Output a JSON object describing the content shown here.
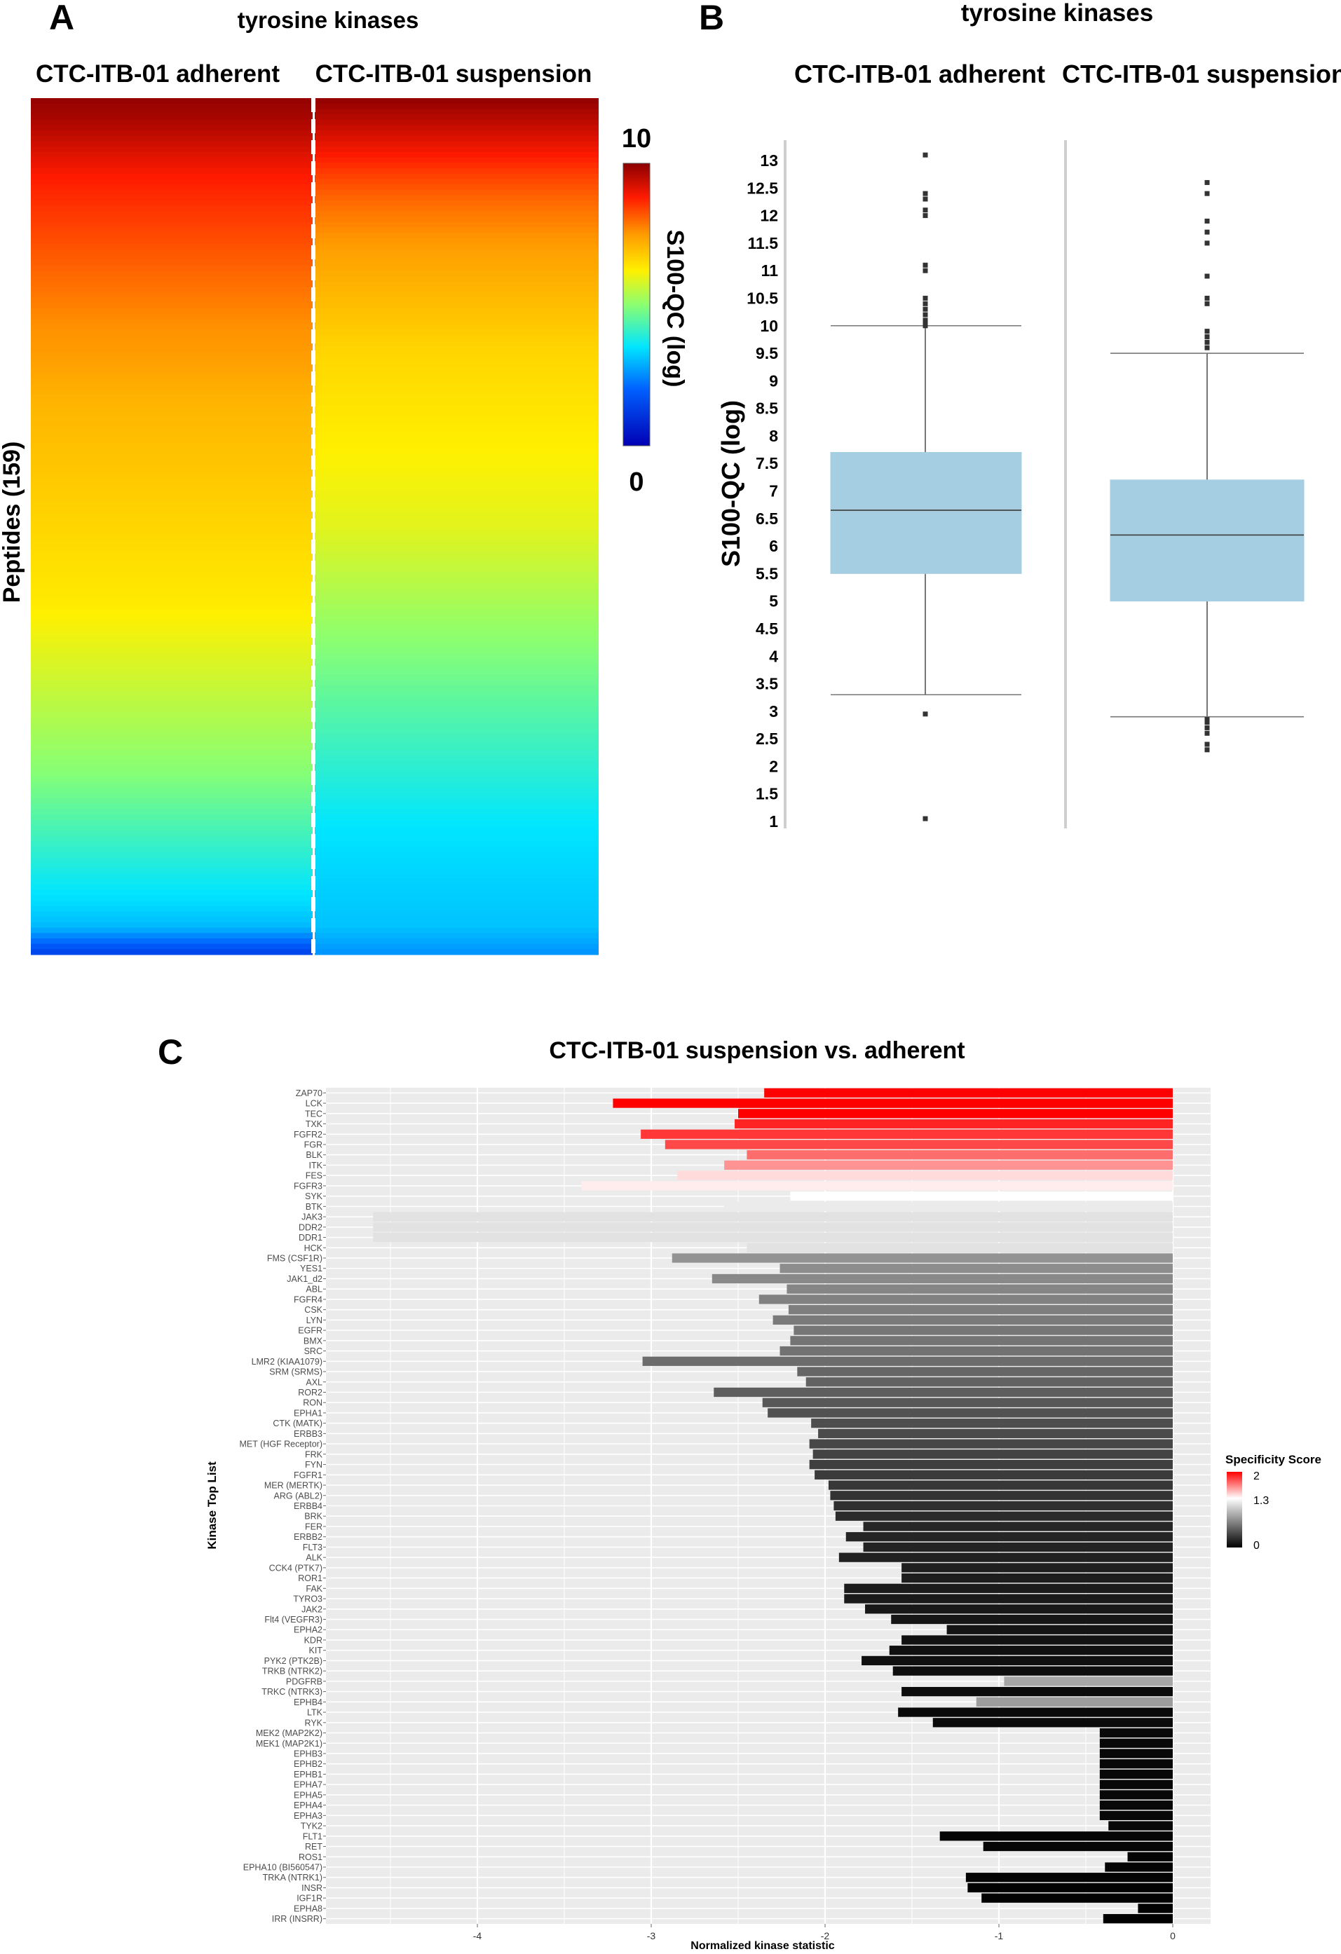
{
  "panelA": {
    "letter": "A",
    "title": "tyrosine kinases",
    "col1": "CTC-ITB-01 adherent",
    "col2": "CTC-ITB-01 suspension",
    "ylabel": "Peptides (159)",
    "colorbar_title": "S100-QC (log)",
    "colorbar_max": "10",
    "colorbar_min": "0"
  },
  "panelB": {
    "letter": "B",
    "title": "tyrosine kinases",
    "col1": "CTC-ITB-01 adherent",
    "col2": "CTC-ITB-01 suspension",
    "ylabel": "S100-QC (log)"
  },
  "panelC": {
    "letter": "C",
    "title": "CTC-ITB-01 suspension vs. adherent",
    "xlabel": "Normalized kinase statistic",
    "ylabel": "Kinase Top List",
    "legend_title": "Specificity Score",
    "legend_labels": [
      "2",
      "1.3",
      "0"
    ]
  },
  "chart_data": [
    {
      "type": "heatmap",
      "title": "tyrosine kinases",
      "columns": [
        "CTC-ITB-01 adherent",
        "CTC-ITB-01 suspension"
      ],
      "rows": "Peptides (159)",
      "colorbar": {
        "label": "S100-QC (log)",
        "min": 0,
        "max": 10
      },
      "value_profile": {
        "adherent": [
          9.9,
          9.6,
          9.2,
          8.8,
          8.6,
          8.4,
          8.2,
          8.0,
          7.8,
          7.6,
          7.5,
          7.3,
          7.1,
          7.0,
          6.9,
          6.8,
          6.7,
          6.6,
          6.5,
          6.4,
          6.3,
          6.1,
          5.9,
          5.7,
          5.5,
          5.3,
          5.1,
          4.9,
          4.6,
          4.3,
          4.0,
          3.7,
          3.4,
          3.0,
          1.5
        ],
        "suspension": [
          9.9,
          9.4,
          8.9,
          8.4,
          8.0,
          7.7,
          7.4,
          7.2,
          7.0,
          6.8,
          6.6,
          6.5,
          6.4,
          6.3,
          6.2,
          6.1,
          6.0,
          5.9,
          5.7,
          5.5,
          5.3,
          5.1,
          4.9,
          4.7,
          4.5,
          4.3,
          4.1,
          3.9,
          3.7,
          3.5,
          3.4,
          3.3,
          3.2,
          3.1,
          2.6
        ]
      }
    },
    {
      "type": "box",
      "title": "tyrosine kinases",
      "ylabel": "S100-QC (log)",
      "ylim": [
        1,
        13
      ],
      "yticks": [
        "13",
        "12.5",
        "12",
        "11.5",
        "11",
        "10.5",
        "10",
        "9.5",
        "9",
        "8.5",
        "8",
        "7.5",
        "7",
        "6.5",
        "6",
        "5.5",
        "5",
        "4.5",
        "4",
        "3.5",
        "3",
        "2.5",
        "2",
        "1.5",
        "1"
      ],
      "series": [
        {
          "name": "CTC-ITB-01 adherent",
          "whisker_low": 3.3,
          "q1": 5.5,
          "median": 6.65,
          "q3": 7.7,
          "whisker_high": 10.0,
          "outliers": [
            13.1,
            12.4,
            12.3,
            12.1,
            12.0,
            11.1,
            11.0,
            10.5,
            10.4,
            10.3,
            10.2,
            10.1,
            10.05,
            10.0,
            2.95,
            1.05
          ]
        },
        {
          "name": "CTC-ITB-01 suspension",
          "whisker_low": 2.9,
          "q1": 5.0,
          "median": 6.2,
          "q3": 7.2,
          "whisker_high": 9.5,
          "outliers": [
            12.6,
            12.4,
            11.9,
            11.7,
            11.5,
            10.9,
            10.5,
            10.4,
            9.9,
            9.8,
            9.7,
            9.6,
            2.85,
            2.8,
            2.7,
            2.6,
            2.4,
            2.3
          ]
        }
      ]
    },
    {
      "type": "bar",
      "title": "CTC-ITB-01 suspension vs. adherent",
      "xlabel": "Normalized kinase statistic",
      "ylabel": "Kinase Top List",
      "xlim": [
        -4.9,
        0.25
      ],
      "xticks": [
        -4,
        -3,
        -2,
        -1,
        0
      ],
      "legend": {
        "title": "Specificity Score",
        "min": 0,
        "mid": 1.3,
        "max": 2
      },
      "series": [
        {
          "name": "ZAP70",
          "values": [
            [
              -2.35,
              2.0
            ]
          ]
        },
        {
          "name": "LCK",
          "values": [
            [
              -3.22,
              2.0
            ],
            [
              -2.5,
              2.0
            ]
          ]
        },
        {
          "name": "TEC",
          "values": [
            [
              -2.5,
              2.0
            ]
          ]
        },
        {
          "name": "TXK",
          "values": [
            [
              -2.52,
              1.9
            ]
          ]
        },
        {
          "name": "FGFR2",
          "values": [
            [
              -3.06,
              1.85
            ],
            [
              -2.5,
              1.85
            ]
          ]
        },
        {
          "name": "FGR",
          "values": [
            [
              -2.92,
              1.8
            ]
          ]
        },
        {
          "name": "BLK",
          "values": [
            [
              -2.45,
              1.7
            ]
          ]
        },
        {
          "name": "ITK",
          "values": [
            [
              -2.58,
              1.6
            ]
          ]
        },
        {
          "name": "FES",
          "values": [
            [
              -2.85,
              1.4
            ]
          ]
        },
        {
          "name": "FGFR3",
          "values": [
            [
              -3.4,
              1.35
            ]
          ]
        },
        {
          "name": "SYK",
          "values": [
            [
              -2.2,
              1.3
            ]
          ]
        },
        {
          "name": "BTK",
          "values": [
            [
              -2.58,
              1.2
            ]
          ]
        },
        {
          "name": "JAK3",
          "values": [
            [
              -4.6,
              1.15
            ]
          ]
        },
        {
          "name": "DDR2",
          "values": [
            [
              -4.6,
              1.15
            ]
          ]
        },
        {
          "name": "DDR1",
          "values": [
            [
              -4.6,
              1.15
            ]
          ]
        },
        {
          "name": "HCK",
          "values": [
            [
              -2.45,
              1.15
            ]
          ]
        },
        {
          "name": "FMS (CSF1R)",
          "values": [
            [
              -2.88,
              0.75
            ]
          ]
        },
        {
          "name": "YES1",
          "values": [
            [
              -2.26,
              0.72
            ]
          ]
        },
        {
          "name": "JAK1_d2",
          "values": [
            [
              -2.65,
              0.7
            ]
          ]
        },
        {
          "name": "ABL",
          "values": [
            [
              -2.22,
              0.68
            ]
          ]
        },
        {
          "name": "FGFR4",
          "values": [
            [
              -2.38,
              0.66
            ]
          ]
        },
        {
          "name": "CSK",
          "values": [
            [
              -2.21,
              0.64
            ]
          ]
        },
        {
          "name": "LYN",
          "values": [
            [
              -2.3,
              0.62
            ]
          ]
        },
        {
          "name": "EGFR",
          "values": [
            [
              -2.18,
              0.6
            ]
          ]
        },
        {
          "name": "BMX",
          "values": [
            [
              -2.2,
              0.59
            ]
          ]
        },
        {
          "name": "SRC",
          "values": [
            [
              -2.26,
              0.58
            ]
          ]
        },
        {
          "name": "LMR2 (KIAA1079)",
          "values": [
            [
              -3.05,
              0.55
            ]
          ]
        },
        {
          "name": "SRM (SRMS)",
          "values": [
            [
              -2.16,
              0.52
            ]
          ]
        },
        {
          "name": "AXL",
          "values": [
            [
              -2.11,
              0.5
            ]
          ]
        },
        {
          "name": "ROR2",
          "values": [
            [
              -2.64,
              0.48
            ]
          ]
        },
        {
          "name": "RON",
          "values": [
            [
              -2.36,
              0.45
            ]
          ]
        },
        {
          "name": "EPHA1",
          "values": [
            [
              -2.33,
              0.42
            ]
          ]
        },
        {
          "name": "CTK (MATK)",
          "values": [
            [
              -2.08,
              0.4
            ]
          ]
        },
        {
          "name": "ERBB3",
          "values": [
            [
              -2.04,
              0.38
            ]
          ]
        },
        {
          "name": "MET (HGF Receptor)",
          "values": [
            [
              -2.09,
              0.36
            ]
          ]
        },
        {
          "name": "FRK",
          "values": [
            [
              -2.07,
              0.34
            ]
          ]
        },
        {
          "name": "FYN",
          "values": [
            [
              -2.09,
              0.32
            ]
          ]
        },
        {
          "name": "FGFR1",
          "values": [
            [
              -2.06,
              0.3
            ]
          ]
        },
        {
          "name": "MER (MERTK)",
          "values": [
            [
              -1.98,
              0.28
            ]
          ]
        },
        {
          "name": "ARG (ABL2)",
          "values": [
            [
              -1.97,
              0.26
            ]
          ]
        },
        {
          "name": "ERBB4",
          "values": [
            [
              -1.95,
              0.24
            ]
          ]
        },
        {
          "name": "BRK",
          "values": [
            [
              -1.94,
              0.22
            ]
          ]
        },
        {
          "name": "FER",
          "values": [
            [
              -1.78,
              0.2
            ]
          ]
        },
        {
          "name": "ERBB2",
          "values": [
            [
              -1.88,
              0.19
            ]
          ]
        },
        {
          "name": "FLT3",
          "values": [
            [
              -1.78,
              0.18
            ]
          ]
        },
        {
          "name": "ALK",
          "values": [
            [
              -1.92,
              0.17
            ]
          ]
        },
        {
          "name": "CCK4 (PTK7)",
          "values": [
            [
              -1.56,
              0.16
            ]
          ]
        },
        {
          "name": "ROR1",
          "values": [
            [
              -1.56,
              0.15
            ]
          ]
        },
        {
          "name": "FAK",
          "values": [
            [
              -1.89,
              0.14
            ]
          ]
        },
        {
          "name": "TYRO3",
          "values": [
            [
              -1.89,
              0.13
            ]
          ]
        },
        {
          "name": "JAK2",
          "values": [
            [
              -1.77,
              0.12
            ]
          ]
        },
        {
          "name": "Flt4 (VEGFR3)",
          "values": [
            [
              -1.62,
              0.11
            ]
          ]
        },
        {
          "name": "EPHA2",
          "values": [
            [
              -1.3,
              0.1
            ]
          ]
        },
        {
          "name": "KDR",
          "values": [
            [
              -1.56,
              0.09
            ]
          ]
        },
        {
          "name": "KIT",
          "values": [
            [
              -1.63,
              0.08
            ]
          ]
        },
        {
          "name": "PYK2 (PTK2B)",
          "values": [
            [
              -1.79,
              0.08
            ]
          ]
        },
        {
          "name": "TRKB (NTRK2)",
          "values": [
            [
              -1.61,
              0.07
            ]
          ]
        },
        {
          "name": "PDGFRB",
          "values": [
            [
              -0.97,
              0.85
            ]
          ]
        },
        {
          "name": "TRKC (NTRK3)",
          "values": [
            [
              -1.56,
              0.06
            ]
          ]
        },
        {
          "name": "EPHB4",
          "values": [
            [
              -1.13,
              0.8
            ]
          ]
        },
        {
          "name": "LTK",
          "values": [
            [
              -1.58,
              0.05
            ]
          ]
        },
        {
          "name": "RYK",
          "values": [
            [
              -1.38,
              0.05
            ]
          ]
        },
        {
          "name": "MEK2 (MAP2K2)",
          "values": [
            [
              -0.42,
              0.04
            ]
          ]
        },
        {
          "name": "MEK1 (MAP2K1)",
          "values": [
            [
              -0.42,
              0.04
            ]
          ]
        },
        {
          "name": "EPHB3",
          "values": [
            [
              -0.42,
              0.04
            ]
          ]
        },
        {
          "name": "EPHB2",
          "values": [
            [
              -0.42,
              0.04
            ]
          ]
        },
        {
          "name": "EPHB1",
          "values": [
            [
              -0.42,
              0.04
            ]
          ]
        },
        {
          "name": "EPHA7",
          "values": [
            [
              -0.42,
              0.04
            ]
          ]
        },
        {
          "name": "EPHA5",
          "values": [
            [
              -0.42,
              0.04
            ]
          ]
        },
        {
          "name": "EPHA4",
          "values": [
            [
              -0.42,
              0.04
            ]
          ]
        },
        {
          "name": "EPHA3",
          "values": [
            [
              -0.42,
              0.04
            ]
          ]
        },
        {
          "name": "TYK2",
          "values": [
            [
              -0.37,
              0.04
            ]
          ]
        },
        {
          "name": "FLT1",
          "values": [
            [
              -1.34,
              0.03
            ]
          ]
        },
        {
          "name": "RET",
          "values": [
            [
              -1.09,
              0.03
            ]
          ]
        },
        {
          "name": "ROS1",
          "values": [
            [
              -0.26,
              0.02
            ]
          ]
        },
        {
          "name": "EPHA10 (BI560547)",
          "values": [
            [
              -0.39,
              0.02
            ]
          ]
        },
        {
          "name": "TRKA (NTRK1)",
          "values": [
            [
              -1.19,
              0.02
            ]
          ]
        },
        {
          "name": "INSR",
          "values": [
            [
              -1.18,
              0.01
            ]
          ]
        },
        {
          "name": "IGF1R",
          "values": [
            [
              -1.1,
              0.01
            ]
          ]
        },
        {
          "name": "EPHA8",
          "values": [
            [
              -0.2,
              0.01
            ]
          ]
        },
        {
          "name": "IRR (INSRR)",
          "values": [
            [
              -0.4,
              0.0
            ]
          ]
        }
      ]
    }
  ]
}
